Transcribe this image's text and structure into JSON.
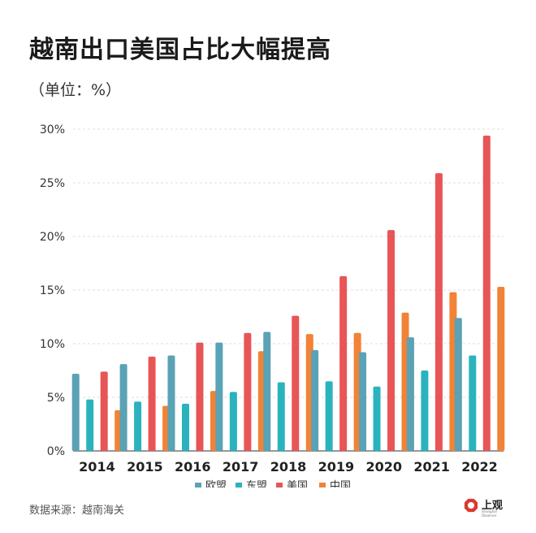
{
  "header": {
    "title": "越南出口美国占比大幅提高",
    "unit": "（单位：%）"
  },
  "footer": {
    "source": "数据来源：越南海关",
    "logo_text": "上观",
    "logo_sub": "Shanghai Observer"
  },
  "chart_data": {
    "type": "bar",
    "title": "越南出口美国占比大幅提高",
    "ylabel": "（单位：%）",
    "categories": [
      "2014",
      "2015",
      "2016",
      "2017",
      "2018",
      "2019",
      "2020",
      "2021",
      "2022"
    ],
    "ylim": [
      0,
      30
    ],
    "yticks": [
      0,
      5,
      10,
      15,
      20,
      25,
      30
    ],
    "ytick_labels": [
      "0%",
      "5%",
      "10%",
      "15%",
      "20%",
      "25%",
      "30%"
    ],
    "grid": true,
    "legend_position": "bottom",
    "series": [
      {
        "name": "欧盟",
        "color": "#5aa2b5",
        "values": [
          7.2,
          8.1,
          8.9,
          10.1,
          11.1,
          9.4,
          9.2,
          10.6,
          12.4
        ]
      },
      {
        "name": "东盟",
        "color": "#2ab3bd",
        "values": [
          4.8,
          4.6,
          4.4,
          5.5,
          6.4,
          6.5,
          6.0,
          7.5,
          8.9
        ]
      },
      {
        "name": "美国",
        "color": "#e85556",
        "values": [
          7.4,
          8.8,
          10.1,
          11.0,
          12.6,
          16.3,
          20.6,
          25.9,
          29.4
        ]
      },
      {
        "name": "中国",
        "color": "#f28236",
        "values": [
          3.8,
          4.2,
          5.6,
          9.3,
          10.9,
          11.0,
          12.9,
          14.8,
          15.3
        ]
      }
    ]
  }
}
